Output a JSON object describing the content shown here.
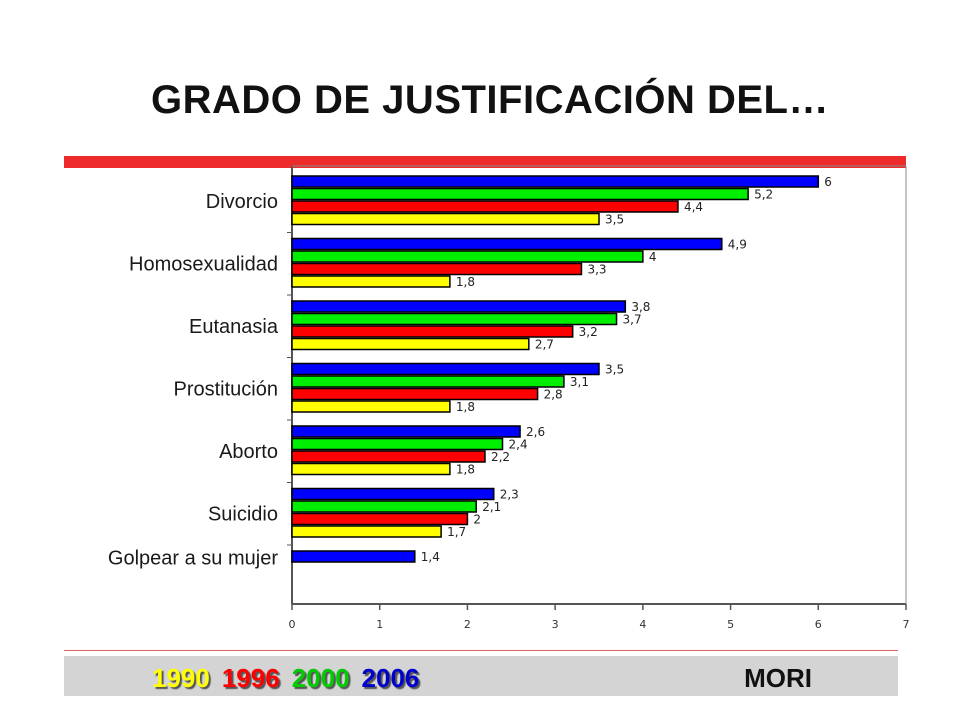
{
  "slide": {
    "title": "GRADO DE JUSTIFICACIÓN DEL…"
  },
  "footer": {
    "years": [
      {
        "label": "1990",
        "color": "#ffff00"
      },
      {
        "label": "1996",
        "color": "#ff0000"
      },
      {
        "label": "2000",
        "color": "#00cc00"
      },
      {
        "label": "2006",
        "color": "#0000cc"
      }
    ],
    "source": "MORI"
  },
  "chart_data": {
    "type": "bar",
    "orientation": "horizontal",
    "categories": [
      "Divorcio",
      "Homosexualidad",
      "Eutanasia",
      "Prostitución",
      "Aborto",
      "Suicidio",
      "Golpear a su mujer"
    ],
    "series": [
      {
        "name": "2006",
        "color": "#0000ff",
        "values": [
          6,
          4.9,
          3.8,
          3.5,
          2.6,
          2.3,
          1.4
        ]
      },
      {
        "name": "2000",
        "color": "#00ee00",
        "values": [
          5.2,
          4,
          3.7,
          3.1,
          2.4,
          2.1,
          null
        ]
      },
      {
        "name": "1996",
        "color": "#ff0000",
        "values": [
          4.4,
          3.3,
          3.2,
          2.8,
          2.2,
          2,
          null
        ]
      },
      {
        "name": "1990",
        "color": "#ffff00",
        "values": [
          3.5,
          1.8,
          2.7,
          1.8,
          1.8,
          1.7,
          null
        ]
      }
    ],
    "value_labels": [
      [
        "6",
        "5,2",
        "4,4",
        "3,5"
      ],
      [
        "4,9",
        "4",
        "3,3",
        "1,8"
      ],
      [
        "3,8",
        "3,7",
        "3,2",
        "2,7"
      ],
      [
        "3,5",
        "3,1",
        "2,8",
        "1,8"
      ],
      [
        "2,6",
        "2,4",
        "2,2",
        "1,8"
      ],
      [
        "2,3",
        "2,1",
        "2",
        "1,7"
      ],
      [
        "1,4",
        null,
        null,
        null
      ]
    ],
    "xticks": [
      "0",
      "1",
      "2",
      "3",
      "4",
      "5",
      "6",
      "7"
    ],
    "xlim": [
      0,
      7
    ],
    "grid": false
  }
}
